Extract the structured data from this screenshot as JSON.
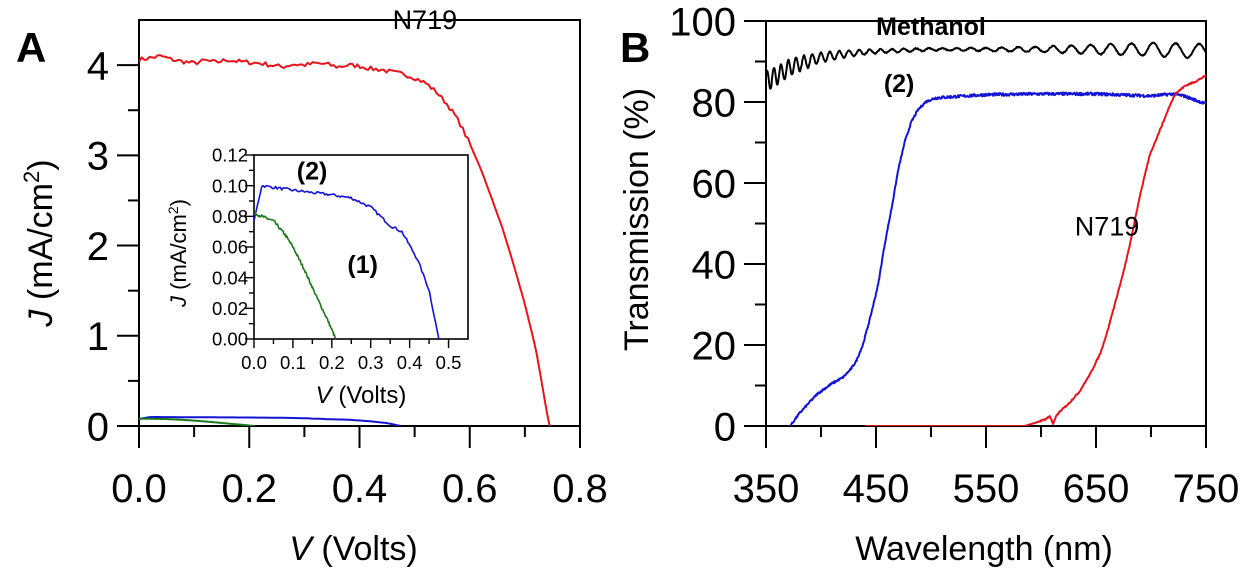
{
  "chart_data": [
    {
      "panel": "A",
      "type": "line",
      "title": "",
      "xlabel_italic": "V",
      "xlabel_rest": " (Volts)",
      "ylabel_italic": "J",
      "ylabel_rest": " (mA/cm",
      "ylabel_sup": "2",
      "ylabel_close": ")",
      "xlim": [
        0,
        0.8
      ],
      "ylim": [
        0,
        4.5
      ],
      "xticks": [
        0.0,
        0.2,
        0.4,
        0.6,
        0.8
      ],
      "xtick_labels": [
        "0.0",
        "0.2",
        "0.4",
        "0.6",
        "0.8"
      ],
      "xminor": [
        0.1,
        0.3,
        0.5,
        0.7
      ],
      "yticks": [
        0,
        1,
        2,
        3,
        4
      ],
      "ytick_labels": [
        "0",
        "1",
        "2",
        "3",
        "4"
      ],
      "yminor": [
        0.5,
        1.5,
        2.5,
        3.5
      ],
      "grid": false,
      "series": [
        {
          "name": "N719",
          "color": "#e8141c",
          "x": [
            0.0,
            0.02,
            0.04,
            0.06,
            0.08,
            0.1,
            0.12,
            0.14,
            0.16,
            0.18,
            0.2,
            0.22,
            0.24,
            0.26,
            0.28,
            0.3,
            0.32,
            0.34,
            0.36,
            0.38,
            0.4,
            0.42,
            0.44,
            0.46,
            0.48,
            0.5,
            0.52,
            0.54,
            0.56,
            0.58,
            0.6,
            0.62,
            0.64,
            0.66,
            0.68,
            0.7,
            0.72,
            0.74,
            0.745
          ],
          "y": [
            4.06,
            4.08,
            4.1,
            4.06,
            4.04,
            4.02,
            4.05,
            4.03,
            4.06,
            4.04,
            4.03,
            4.02,
            4.0,
            3.98,
            4.01,
            4.0,
            4.02,
            4.01,
            3.98,
            4.0,
            3.99,
            3.96,
            3.95,
            3.92,
            3.9,
            3.86,
            3.8,
            3.7,
            3.56,
            3.38,
            3.13,
            2.85,
            2.52,
            2.18,
            1.78,
            1.35,
            0.85,
            0.15,
            0.0
          ]
        },
        {
          "name": "(2)",
          "color": "#1414d4",
          "x": [
            0.0,
            0.02,
            0.1,
            0.2,
            0.25,
            0.3,
            0.35,
            0.38,
            0.42,
            0.45,
            0.475
          ],
          "y": [
            0.077,
            0.1,
            0.097,
            0.094,
            0.092,
            0.086,
            0.074,
            0.07,
            0.052,
            0.032,
            0.0
          ]
        },
        {
          "name": "(1)",
          "color": "#1a7a1a",
          "x": [
            0.0,
            0.02,
            0.05,
            0.08,
            0.1,
            0.13,
            0.16,
            0.19,
            0.21
          ],
          "y": [
            0.082,
            0.08,
            0.077,
            0.068,
            0.06,
            0.045,
            0.028,
            0.012,
            0.0
          ]
        }
      ],
      "annotations": [
        {
          "text": "N719",
          "x": 0.46,
          "y": 4.4,
          "color": "#e8141c"
        }
      ],
      "inset": {
        "xlabel_italic": "V",
        "xlabel_rest": " (Volts)",
        "ylabel_italic": "J",
        "ylabel_rest": " (mA/cm",
        "ylabel_sup": "2",
        "ylabel_close": ")",
        "xlim": [
          0,
          0.55
        ],
        "ylim": [
          0,
          0.12
        ],
        "xticks": [
          0.0,
          0.1,
          0.2,
          0.3,
          0.4,
          0.5
        ],
        "xtick_labels": [
          "0.0",
          "0.1",
          "0.2",
          "0.3",
          "0.4",
          "0.5"
        ],
        "xminor": [
          0.05,
          0.15,
          0.25,
          0.35,
          0.45
        ],
        "yticks": [
          0.0,
          0.02,
          0.04,
          0.06,
          0.08,
          0.1,
          0.12
        ],
        "ytick_labels": [
          "0.00",
          "0.02",
          "0.04",
          "0.06",
          "0.08",
          "0.10",
          "0.12"
        ],
        "yminor": [
          0.01,
          0.03,
          0.05,
          0.07,
          0.09,
          0.11
        ],
        "series_refs": [
          "(2)",
          "(1)"
        ],
        "annotations": [
          {
            "text": "(2)",
            "x": 0.11,
            "y": 0.104,
            "color": "#1414d4"
          },
          {
            "text": "(1)",
            "x": 0.24,
            "y": 0.043,
            "color": "#1a7a1a"
          }
        ]
      }
    },
    {
      "panel": "B",
      "type": "line",
      "title": "",
      "xlabel": "Wavelength (nm)",
      "ylabel": "Transmission (%)",
      "xlim": [
        350,
        750
      ],
      "ylim": [
        0,
        100
      ],
      "xticks": [
        350,
        450,
        550,
        650,
        750
      ],
      "xtick_labels": [
        "350",
        "450",
        "550",
        "650",
        "750"
      ],
      "xminor": [
        400,
        500,
        600,
        700
      ],
      "yticks": [
        0,
        20,
        40,
        60,
        80,
        100
      ],
      "ytick_labels": [
        "0",
        "20",
        "40",
        "60",
        "80",
        "100"
      ],
      "yminor": [
        10,
        30,
        50,
        70,
        90
      ],
      "grid": false,
      "series": [
        {
          "name": "Methanol",
          "color": "#000000",
          "x": [
            350,
            375,
            400,
            425,
            450,
            500,
            550,
            600,
            650,
            700,
            750
          ],
          "y": [
            85,
            89,
            91,
            92,
            92.5,
            93,
            93,
            93,
            93,
            93,
            92.5
          ],
          "oscillation_amplitude": [
            2.5,
            2,
            1.2,
            0.8,
            0.5,
            0.3,
            0.4,
            0.7,
            1.2,
            1.6,
            1.8
          ],
          "oscillation_period_nm": [
            6,
            7,
            8,
            9,
            10,
            12,
            14,
            16,
            18,
            20,
            22
          ]
        },
        {
          "name": "(2)",
          "color": "#1414d4",
          "x": [
            372,
            380,
            390,
            397,
            410,
            420,
            427,
            432,
            438,
            445,
            452,
            458,
            465,
            470,
            476,
            482,
            488,
            495,
            504,
            520,
            550,
            600,
            650,
            700,
            720,
            730,
            740,
            750
          ],
          "y": [
            0,
            3,
            6,
            8,
            10.5,
            12,
            14,
            16,
            20,
            27,
            35,
            45,
            55,
            63,
            70,
            75,
            78,
            80,
            81,
            81.3,
            81.8,
            82,
            82,
            81.5,
            82,
            81.5,
            80.5,
            79.5
          ]
        },
        {
          "name": "N719",
          "color": "#e8141c",
          "x": [
            440,
            500,
            560,
            585,
            595,
            605,
            608,
            611,
            614,
            617,
            625,
            635,
            645,
            654,
            660,
            667,
            675,
            681,
            690,
            699,
            705,
            711,
            717,
            722,
            731,
            740,
            750
          ],
          "y": [
            0,
            0,
            0,
            0,
            0.8,
            1.8,
            2.5,
            0.5,
            2.5,
            3.5,
            5.5,
            8.5,
            13,
            18,
            23,
            30,
            38,
            45,
            57,
            67,
            71,
            75,
            79,
            82,
            84,
            85,
            86.5
          ]
        }
      ],
      "annotations": [
        {
          "text": "Methanol",
          "x": 500,
          "y": 96.5,
          "color": "#000000",
          "bold": true
        },
        {
          "text": "(2)",
          "x": 471,
          "y": 82.5,
          "color": "#1414d4",
          "bold": true
        },
        {
          "text": "N719",
          "x": 660,
          "y": 47,
          "color": "#e8141c"
        }
      ]
    }
  ],
  "labels": {
    "panel_a": "A",
    "panel_b": "B"
  }
}
